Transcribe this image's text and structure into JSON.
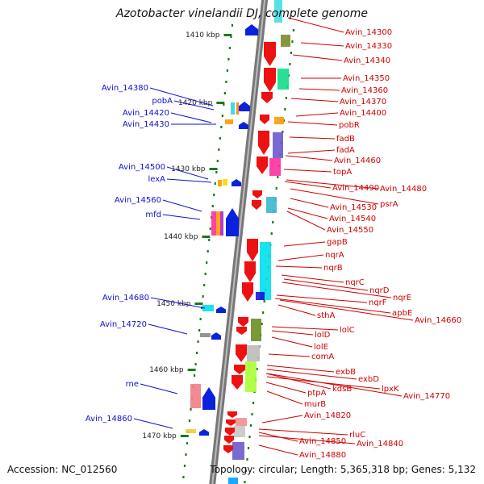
{
  "title": "Azotobacter vinelandii DJ, complete genome",
  "footer": {
    "accession": "Accession: NC_012560",
    "topology": "Topology: circular; Length: 5,365,318 bp; Genes: 5,132"
  },
  "colors": {
    "forward_label": "#1010d0",
    "reverse_label": "#d00000",
    "forward_arrow": "#0a22dd",
    "reverse_arrow": "#ee1111",
    "backbone": "#777777",
    "tick": "#1a7a1a"
  },
  "scale_labels": [
    "1410 kbp",
    "1420 kbp",
    "1430 kbp",
    "1440 kbp",
    "1450 kbp",
    "1460 kbp",
    "1470 kbp"
  ],
  "forward_genes": [
    "Avin_14380",
    "pobA",
    "Avin_14420",
    "Avin_14430",
    "Avin_14500",
    "lexA",
    "Avin_14560",
    "mfd",
    "Avin_14680",
    "Avin_14720",
    "rne",
    "Avin_14860"
  ],
  "reverse_genes": [
    "Avin_14300",
    "Avin_14330",
    "Avin_14340",
    "Avin_14350",
    "Avin_14360",
    "Avin_14370",
    "Avin_14400",
    "pobR",
    "fadB",
    "fadA",
    "Avin_14460",
    "topA",
    "Avin_14490",
    "Avin_14480",
    "psrA",
    "Avin_14530",
    "Avin_14540",
    "Avin_14550",
    "gapB",
    "nqrA",
    "nqrB",
    "nqrC",
    "nqrD",
    "nqrE",
    "nqrF",
    "apbE",
    "sthA",
    "Avin_14660",
    "lolC",
    "lolD",
    "lolE",
    "comA",
    "exbB",
    "exbD",
    "kdsB",
    "lpxK",
    "ptpA",
    "Avin_14770",
    "murB",
    "Avin_14820",
    "rluC",
    "Avin_14840",
    "Avin_14850",
    "Avin_14880"
  ]
}
